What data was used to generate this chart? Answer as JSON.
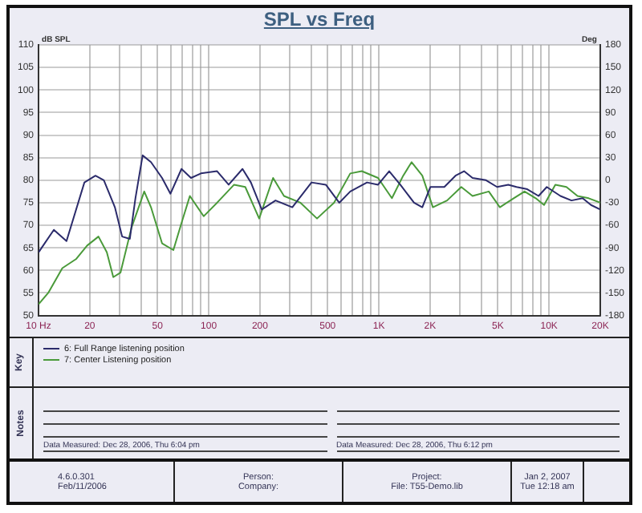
{
  "chart_data": {
    "type": "line",
    "title": "SPL vs Freq",
    "ylabel": "dB SPL",
    "y2label": "Deg",
    "legend_title": "Key",
    "series": [
      {
        "name": "6: Full Range listening position",
        "color": "#2b2b6b",
        "x": [
          10,
          12.3,
          14.6,
          18.6,
          21.6,
          24.2,
          28.1,
          31,
          34.4,
          37.1,
          40.9,
          45.8,
          53.2,
          59.6,
          69.2,
          78.7,
          90,
          112,
          131,
          158,
          177,
          205,
          247,
          310,
          402,
          488,
          585,
          679,
          852,
          989,
          1150,
          1336,
          1610,
          1800,
          2009,
          2425,
          2820,
          3167,
          3552,
          4262,
          4950,
          5760,
          6440,
          7450,
          8680,
          9700,
          11670,
          13550,
          15750,
          17650,
          20000
        ],
        "values": [
          64,
          69,
          66.5,
          79.5,
          81,
          80,
          74,
          67.5,
          67,
          76,
          85.5,
          84,
          80.5,
          77,
          82.5,
          80.5,
          81.5,
          82,
          79,
          82.5,
          79.5,
          73.5,
          75.5,
          74,
          79.5,
          79,
          75,
          77.5,
          79.5,
          79,
          82,
          79,
          75,
          74,
          78.5,
          78.5,
          81,
          82,
          80.5,
          80,
          78.5,
          79,
          78.5,
          78,
          76.5,
          78.5,
          76.5,
          75.5,
          76,
          74.5,
          73.5
        ]
      },
      {
        "name": "7: Center Listening position",
        "color": "#4a9a3a",
        "x": [
          10,
          11.4,
          13.8,
          16.6,
          19.3,
          22.5,
          25.2,
          27.5,
          30.3,
          35.2,
          41.8,
          45.8,
          53.2,
          62,
          69.2,
          77.5,
          93.4,
          112,
          141,
          164,
          198,
          239,
          277,
          346,
          433,
          545,
          679,
          794,
          989,
          1193,
          1390,
          1558,
          1800,
          2077,
          2517,
          3050,
          3552,
          4425,
          5140,
          6200,
          7180,
          8350,
          9350,
          10890,
          12650,
          14700,
          17100,
          20000
        ],
        "values": [
          52.5,
          55,
          60.5,
          62.5,
          65.5,
          67.5,
          64,
          58.5,
          59.5,
          69.5,
          77.5,
          74,
          66,
          64.5,
          70.5,
          76.5,
          72,
          75,
          79,
          78.5,
          71.5,
          80.5,
          76.5,
          75,
          71.5,
          75,
          81.5,
          82,
          80.5,
          76,
          81,
          84,
          81,
          74,
          75.5,
          78.5,
          76.5,
          77.5,
          74,
          76,
          77.5,
          76,
          74.5,
          79,
          78.5,
          76.5,
          76,
          75
        ]
      }
    ],
    "log": "x",
    "xlim": [
      10,
      20000
    ],
    "xticks": [
      {
        "value": 10,
        "label": "10 Hz"
      },
      20,
      {
        "value": 30,
        "label": null
      },
      {
        "value": 40,
        "label": null
      },
      50,
      {
        "value": 60,
        "label": null
      },
      {
        "value": 70,
        "label": null
      },
      {
        "value": 80,
        "label": null
      },
      {
        "value": 90,
        "label": null
      },
      100,
      200,
      {
        "value": 300,
        "label": null
      },
      {
        "value": 400,
        "label": null
      },
      500,
      {
        "value": 600,
        "label": null
      },
      {
        "value": 700,
        "label": null
      },
      {
        "value": 800,
        "label": null
      },
      {
        "value": 900,
        "label": null
      },
      {
        "value": 1000,
        "label": "1K"
      },
      {
        "value": 2000,
        "label": "2K"
      },
      {
        "value": 3000,
        "label": null
      },
      {
        "value": 4000,
        "label": null
      },
      {
        "value": 5000,
        "label": "5K"
      },
      {
        "value": 6000,
        "label": null
      },
      {
        "value": 7000,
        "label": null
      },
      {
        "value": 8000,
        "label": null
      },
      {
        "value": 9000,
        "label": null
      },
      {
        "value": 10000,
        "label": "10K"
      },
      {
        "value": 20000,
        "label": "20K"
      }
    ],
    "ylim": [
      50,
      110
    ],
    "yticks": [
      50,
      55,
      60,
      65,
      70,
      75,
      80,
      85,
      90,
      95,
      100,
      105,
      110
    ],
    "y2lim": [
      -180,
      180
    ],
    "y2ticks": [
      -180,
      -150,
      -120,
      -90,
      -60,
      -30,
      0,
      30,
      60,
      90,
      120,
      150,
      180
    ],
    "grid": true,
    "legend": "bottom",
    "marker": "none",
    "line_style": "solid",
    "annotations": [
      "Notes",
      "Data Measured: Dec 28, 2006, Thu 6:04 pm",
      "Data Measured: Dec 28, 2006, Thu 6:12 pm",
      "4.6.0.301",
      "Feb/11/2006",
      "Person:",
      "Company:",
      "Project:",
      "File: T55-Demo.lib",
      "Jan 2, 2007",
      "Tue 12:18 am"
    ]
  }
}
